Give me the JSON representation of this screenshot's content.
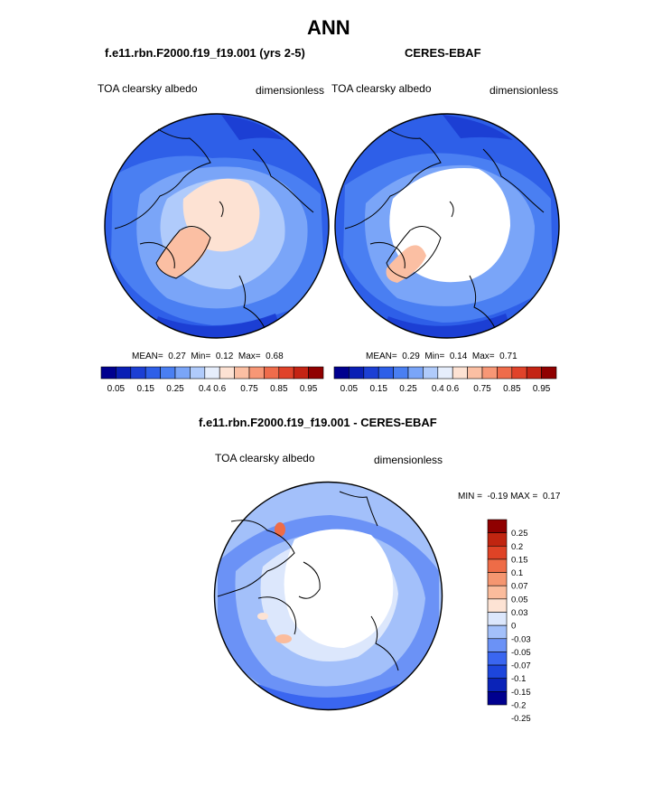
{
  "page": {
    "title": "ANN",
    "diff_title": "f.e11.rbn.F2000.f19_f19.001 - CERES-EBAF"
  },
  "colors": {
    "abs_levels": [
      "#00008f",
      "#0a1fb5",
      "#1c3fd4",
      "#2e5fe8",
      "#4a7ff2",
      "#7aa5f8",
      "#b0cbfb",
      "#e6eefc",
      "#fde2d3",
      "#fbbfa3",
      "#f79776",
      "#ef6c4b",
      "#e0432a",
      "#c42414",
      "#900000"
    ],
    "diff_levels": [
      "#00008f",
      "#0a23b8",
      "#1d46dc",
      "#3a66f0",
      "#6b92f6",
      "#a3c0fa",
      "#dce7fc",
      "#fde3d4",
      "#fbbc9c",
      "#f59670",
      "#ee6c47",
      "#df4326",
      "#c02510",
      "#8f0000"
    ],
    "land": "#ffffff",
    "coast": "#000000"
  },
  "chart_data": [
    {
      "type": "heatmap",
      "projection": "north-polar-stereographic",
      "title": "f.e11.rbn.F2000.f19_f19.001 (yrs 2-5)",
      "left_label": "TOA clearsky albedo",
      "right_label": "dimensionless",
      "stats": {
        "mean_label": "MEAN=",
        "mean": "0.27",
        "min_label": "Min=",
        "min": "0.12",
        "max_label": "Max=",
        "max": "0.68"
      },
      "colorbar_orientation": "horizontal",
      "colorbar_ticks": [
        "0.05",
        "0.15",
        "0.25",
        "0.4",
        "0.6",
        "0.75",
        "0.85",
        "0.95"
      ]
    },
    {
      "type": "heatmap",
      "projection": "north-polar-stereographic",
      "title": "CERES-EBAF",
      "left_label": "TOA clearsky albedo",
      "right_label": "dimensionless",
      "stats": {
        "mean_label": "MEAN=",
        "mean": "0.29",
        "min_label": "Min=",
        "min": "0.14",
        "max_label": "Max=",
        "max": "0.71"
      },
      "colorbar_orientation": "horizontal",
      "colorbar_ticks": [
        "0.05",
        "0.15",
        "0.25",
        "0.4",
        "0.6",
        "0.75",
        "0.85",
        "0.95"
      ]
    },
    {
      "type": "heatmap",
      "projection": "north-polar-stereographic",
      "title": "f.e11.rbn.F2000.f19_f19.001 - CERES-EBAF",
      "left_label": "TOA clearsky albedo",
      "right_label": "dimensionless",
      "stats": {
        "min_label": "MIN =",
        "min": "-0.19",
        "max_label": "MAX =",
        "max": "0.17"
      },
      "colorbar_orientation": "vertical",
      "colorbar_ticks": [
        "0.25",
        "0.2",
        "0.15",
        "0.1",
        "0.07",
        "0.05",
        "0.03",
        "0",
        "-0.03",
        "-0.05",
        "-0.07",
        "-0.1",
        "-0.15",
        "-0.2",
        "-0.25"
      ]
    }
  ]
}
